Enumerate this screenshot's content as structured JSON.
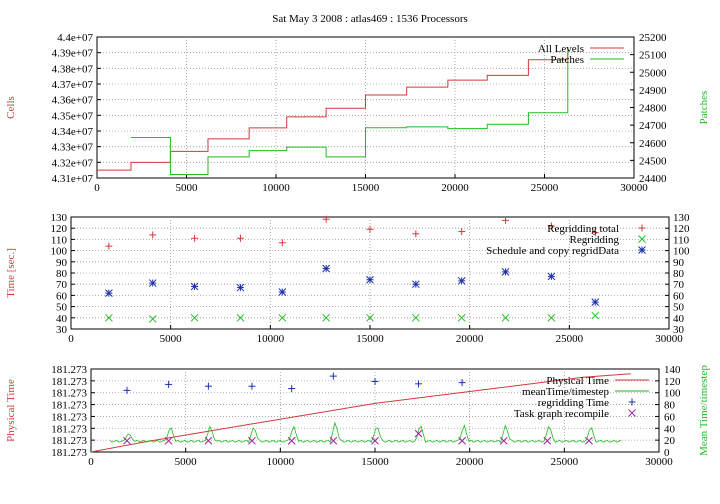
{
  "title": "Sat May 3 2008 : atlas469 : 1536 Processors",
  "colors": {
    "red": "#d23a3a",
    "green": "#22bb22",
    "blue": "#1d2fb0",
    "purple": "#a020a0",
    "grid": "#9a9a9a"
  },
  "chart_data": [
    {
      "type": "line",
      "ylabel": "Cells",
      "y2label": "Patches",
      "xlim": [
        0,
        30000
      ],
      "ylim": [
        43100000,
        44000000
      ],
      "y2lim": [
        24400,
        25200
      ],
      "xticks": [
        0,
        5000,
        10000,
        15000,
        20000,
        25000,
        30000
      ],
      "yticks": [
        "4.31e+07",
        "4.32e+07",
        "4.33e+07",
        "4.34e+07",
        "4.35e+07",
        "4.36e+07",
        "4.37e+07",
        "4.38e+07",
        "4.39e+07",
        "4.4e+07"
      ],
      "y2ticks": [
        24400,
        24500,
        24600,
        24700,
        24800,
        24900,
        25000,
        25100,
        25200
      ],
      "legend": "top-right",
      "series": [
        {
          "name": "All Levels",
          "axis": "y",
          "color": "#d23a3a",
          "step": true,
          "x": [
            0,
            1900,
            4100,
            6200,
            8500,
            10600,
            12800,
            15000,
            17300,
            19600,
            21800,
            24100,
            26300
          ],
          "y": [
            43150000,
            43200000,
            43270000,
            43350000,
            43420000,
            43490000,
            43545000,
            43630000,
            43680000,
            43725000,
            43755000,
            43855000,
            43900000
          ]
        },
        {
          "name": "Patches",
          "axis": "y2",
          "color": "#22bb22",
          "step": true,
          "x": [
            1900,
            4100,
            6200,
            8500,
            10600,
            12800,
            15000,
            17300,
            19600,
            21800,
            24100,
            26300
          ],
          "y": [
            24630,
            24420,
            24520,
            24555,
            24575,
            24520,
            24685,
            24690,
            24680,
            24705,
            24770,
            25140
          ]
        }
      ]
    },
    {
      "type": "scatter",
      "ylabel": "Time [sec.]",
      "xlim": [
        0,
        30000
      ],
      "ylim": [
        30,
        130
      ],
      "xticks": [
        0,
        5000,
        10000,
        15000,
        20000,
        25000,
        30000
      ],
      "yticks": [
        30,
        40,
        50,
        60,
        70,
        80,
        90,
        100,
        110,
        120,
        130
      ],
      "legend": "top-right",
      "series": [
        {
          "name": "Regridding total",
          "marker": "plus",
          "color": "#d23a3a",
          "x": [
            1900,
            4100,
            6200,
            8500,
            10600,
            12800,
            15000,
            17300,
            19600,
            21800,
            24100,
            26300
          ],
          "y": [
            104,
            114,
            111,
            111,
            107,
            128,
            119,
            115,
            117,
            127,
            122,
            116
          ]
        },
        {
          "name": "Regridding",
          "marker": "cross",
          "color": "#22bb22",
          "x": [
            1900,
            4100,
            6200,
            8500,
            10600,
            12800,
            15000,
            17300,
            19600,
            21800,
            24100,
            26300
          ],
          "y": [
            40,
            39,
            40,
            40,
            40,
            40,
            40,
            40,
            40,
            40,
            40,
            42
          ]
        },
        {
          "name": "Schedule and copy regridData",
          "marker": "star",
          "color": "#1d2fb0",
          "x": [
            1900,
            4100,
            6200,
            8500,
            10600,
            12800,
            15000,
            17300,
            19600,
            21800,
            24100,
            26300
          ],
          "y": [
            62,
            71,
            68,
            67,
            63,
            84,
            74,
            70,
            73,
            81,
            77,
            54
          ]
        }
      ]
    },
    {
      "type": "line",
      "ylabel": "Physical Time",
      "y2label": "Mean Time/timestep",
      "xlim": [
        0,
        30000
      ],
      "ylim": [
        0,
        7
      ],
      "y2lim": [
        0,
        140
      ],
      "xticks": [
        0,
        5000,
        10000,
        15000,
        20000,
        25000,
        30000
      ],
      "yticks": [
        "181.273",
        "181.273",
        "181.273",
        "181.273",
        "181.273",
        "181.273",
        "181.273",
        "181.273"
      ],
      "y2ticks": [
        0,
        20,
        40,
        60,
        80,
        100,
        120,
        140
      ],
      "legend": "top-right",
      "series": [
        {
          "name": "Physical Time",
          "axis": "y",
          "color": "#d23a3a",
          "x": [
            0,
            3000,
            6000,
            9000,
            12000,
            15000,
            18000,
            21000,
            24000,
            26000,
            28500
          ],
          "y": [
            0,
            0.9,
            1.7,
            2.5,
            3.3,
            4.1,
            4.7,
            5.3,
            5.9,
            6.3,
            6.6
          ]
        },
        {
          "name": "meanTime/timestep",
          "axis": "y2",
          "color": "#22bb22",
          "baseline": 18,
          "spikes_x": [
            2000,
            4200,
            6300,
            8600,
            10700,
            12900,
            15100,
            17400,
            19700,
            21900,
            24200,
            26400
          ],
          "spikes_y": [
            33,
            45,
            45,
            45,
            45,
            52,
            47,
            48,
            47,
            47,
            47,
            45
          ]
        },
        {
          "name": "regridding Time",
          "marker": "plus",
          "axis": "y2",
          "color": "#1d2fb0",
          "x": [
            1900,
            4100,
            6200,
            8500,
            10600,
            12800,
            15000,
            17300,
            19600
          ],
          "y": [
            104,
            114,
            111,
            111,
            107,
            128,
            119,
            115,
            117
          ]
        },
        {
          "name": "Task graph recompile",
          "marker": "cross",
          "axis": "y2",
          "color": "#a020a0",
          "x": [
            1900,
            4100,
            6200,
            8500,
            10600,
            12800,
            15000,
            17300,
            19600,
            21800,
            24100,
            26300
          ],
          "y": [
            19,
            19,
            19,
            19,
            19,
            19,
            19,
            31,
            19,
            19,
            19,
            19
          ]
        }
      ]
    }
  ]
}
